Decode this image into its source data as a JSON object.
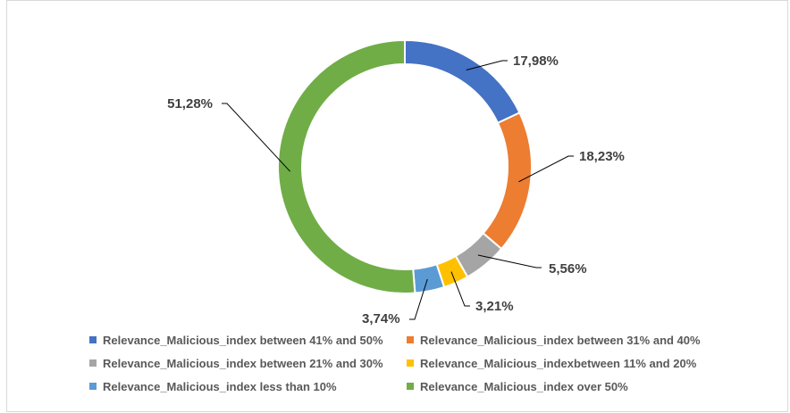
{
  "chart_data": {
    "type": "pie",
    "variant": "doughnut",
    "title": "",
    "labels": [
      "Relevance_Malicious_index between 41% and 50%",
      "Relevance_Malicious_index between 31% and 40%",
      "Relevance_Malicious_index between 21% and 30%",
      "Relevance_Malicious_indexbetween 11% and 20%",
      "Relevance_Malicious_index less than 10%",
      "Relevance_Malicious_index over 50%"
    ],
    "values": [
      17.98,
      18.23,
      5.56,
      3.21,
      3.74,
      51.28
    ],
    "data_labels": [
      "17,98%",
      "18,23%",
      "5,56%",
      "3,21%",
      "3,74%",
      "51,28%"
    ],
    "colors": [
      "#4472c4",
      "#ed7d31",
      "#a5a5a5",
      "#ffc000",
      "#5b9bd5",
      "#70ad47"
    ],
    "legend_position": "bottom"
  }
}
